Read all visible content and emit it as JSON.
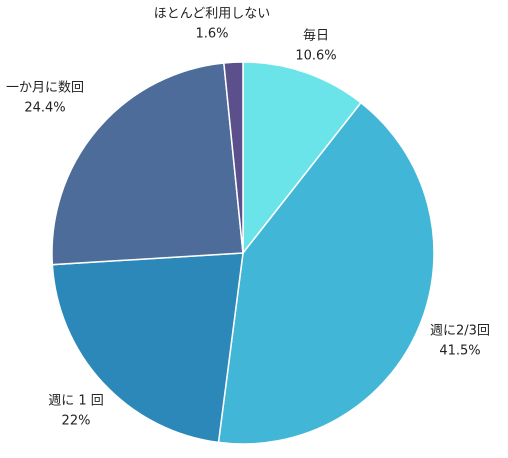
{
  "chart_data": {
    "type": "pie",
    "categories": [
      "毎日",
      "週に2/3回",
      "週に 1 回",
      "一か月に数回",
      "ほとんど利用しない"
    ],
    "values": [
      10.6,
      41.5,
      22,
      24.4,
      1.6
    ],
    "value_labels": [
      "10.6%",
      "41.5%",
      "22%",
      "24.4%",
      "1.6%"
    ],
    "colors": [
      "#6ae4e9",
      "#42b6d6",
      "#2b88b9",
      "#4e6c99",
      "#5b4f8c"
    ]
  }
}
